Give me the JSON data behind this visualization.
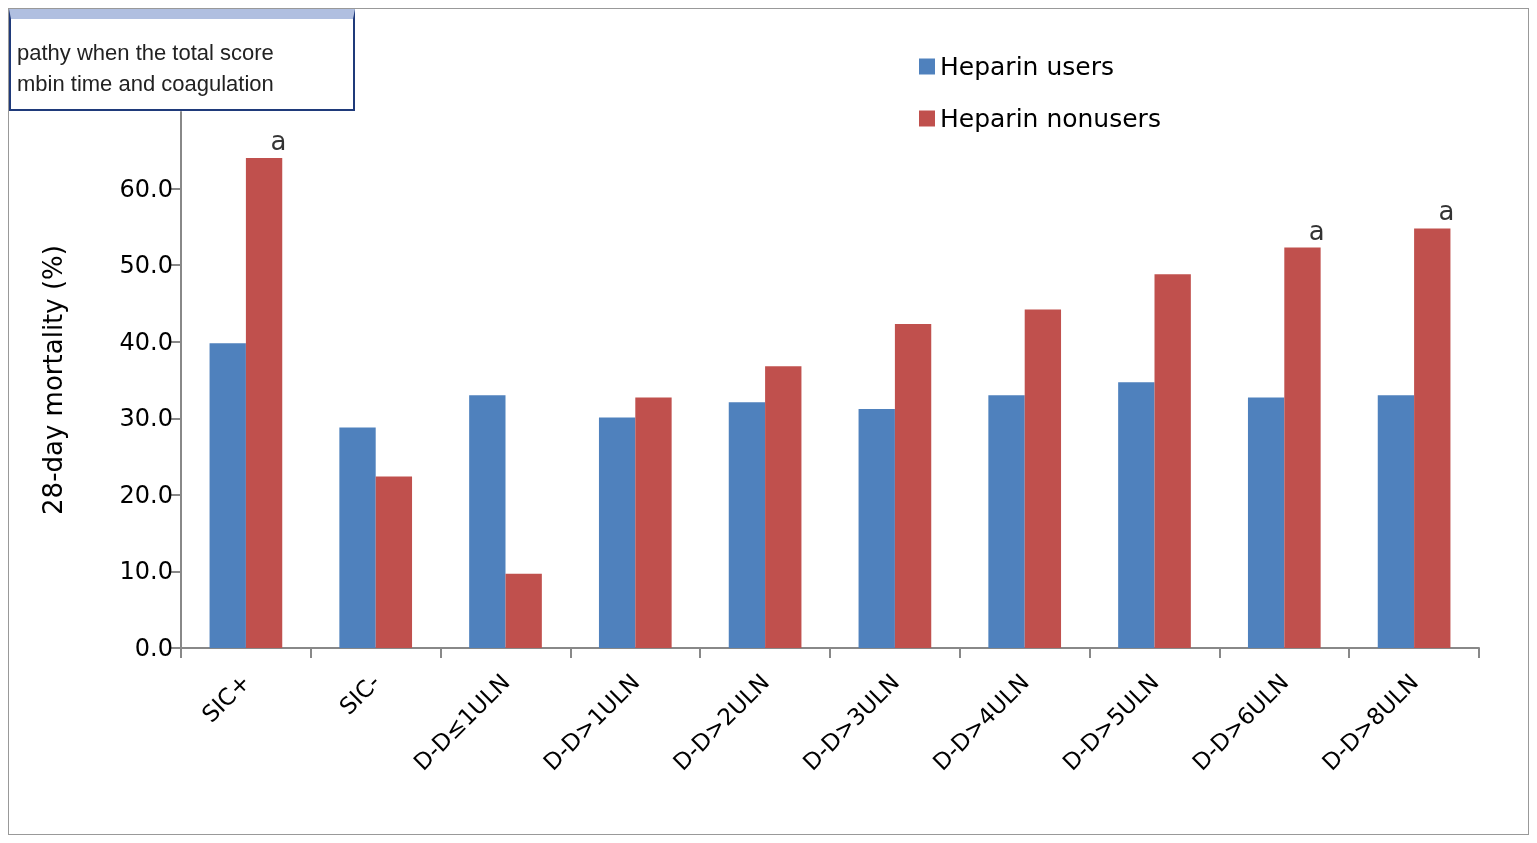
{
  "chart_data": {
    "type": "bar",
    "ylabel": "28-day mortality (%)",
    "categories": [
      "SIC+",
      "SIC-",
      "D-D≤1ULN",
      "D-D>1ULN",
      "D-D>2ULN",
      "D-D>3ULN",
      "D-D>4ULN",
      "D-D>5ULN",
      "D-D>6ULN",
      "D-D>8ULN"
    ],
    "series": [
      {
        "name": "Heparin users",
        "color": "#4f81bd",
        "values": [
          39.8,
          28.8,
          33.0,
          30.1,
          32.1,
          31.2,
          33.0,
          34.7,
          32.7,
          33.0
        ]
      },
      {
        "name": "Heparin nonusers",
        "color": "#c0504d",
        "values": [
          64.0,
          22.4,
          9.7,
          32.7,
          36.8,
          42.3,
          44.2,
          48.8,
          52.3,
          54.8
        ]
      }
    ],
    "ylim": [
      0,
      70
    ],
    "yticks": [
      {
        "value": 0,
        "label": "0.0"
      },
      {
        "value": 10,
        "label": "10.0"
      },
      {
        "value": 20,
        "label": "20.0"
      },
      {
        "value": 30,
        "label": "30.0"
      },
      {
        "value": 40,
        "label": "40.0"
      },
      {
        "value": 50,
        "label": "50.0"
      },
      {
        "value": 60,
        "label": "60.0"
      }
    ],
    "grid": false,
    "legend": "top right",
    "annotations": [
      "pathy when the total score",
      "mbin time and coagulation",
      {
        "text": "a",
        "x": "SIC+",
        "y": 64.0
      },
      {
        "text": "a",
        "x": "D-D>6ULN",
        "y": 52.3
      },
      {
        "text": "a",
        "x": "D-D>8ULN",
        "y": 54.8
      }
    ]
  }
}
